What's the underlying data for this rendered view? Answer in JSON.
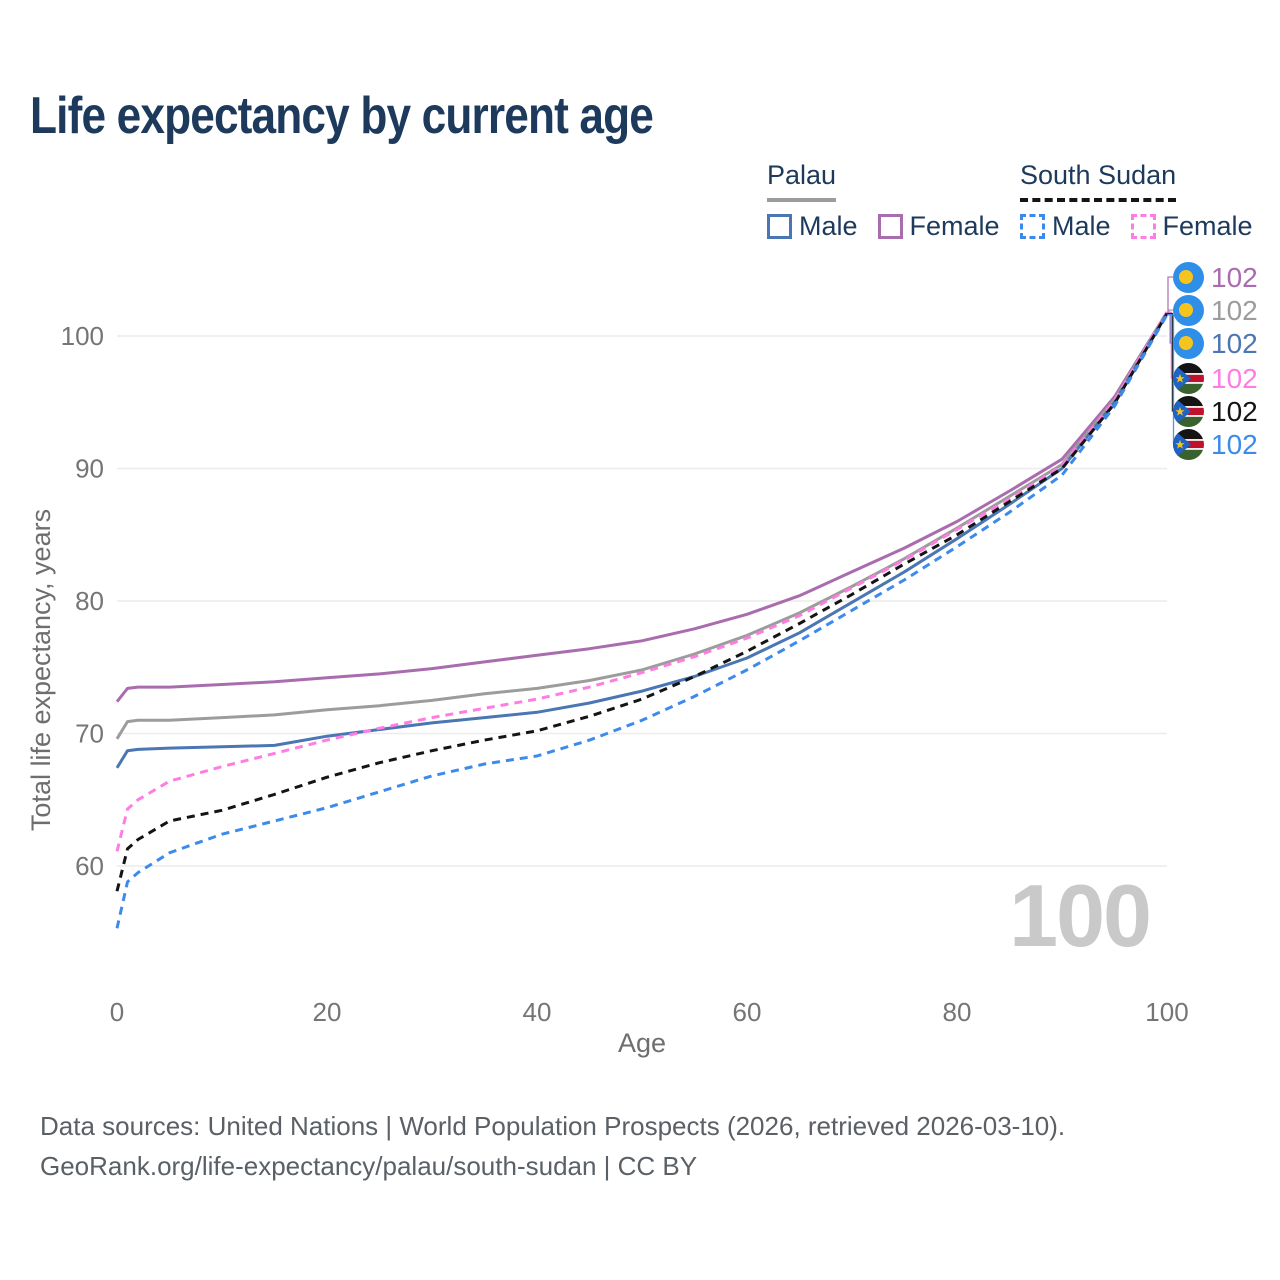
{
  "title": "Life expectancy by current age",
  "legend": {
    "groups": [
      {
        "title": "Palau",
        "line_style": "solid",
        "line_color": "#9c9c9c",
        "items": [
          {
            "label": "Male",
            "color": "#4a76b4",
            "dashed": false
          },
          {
            "label": "Female",
            "color": "#a96cae",
            "dashed": false
          }
        ]
      },
      {
        "title": "South Sudan",
        "line_style": "dashed",
        "line_color": "#141414",
        "items": [
          {
            "label": "Male",
            "color": "#3c8bec",
            "dashed": true
          },
          {
            "label": "Female",
            "color": "#ff7de2",
            "dashed": true
          }
        ]
      }
    ]
  },
  "right_labels": [
    {
      "flag": "palau",
      "value": "102",
      "color": "#a96cae"
    },
    {
      "flag": "palau",
      "value": "102",
      "color": "#9c9c9c"
    },
    {
      "flag": "palau",
      "value": "102",
      "color": "#4a76b4"
    },
    {
      "flag": "south-sudan",
      "value": "102",
      "color": "#ff7de2"
    },
    {
      "flag": "south-sudan",
      "value": "102",
      "color": "#141414"
    },
    {
      "flag": "south-sudan",
      "value": "102",
      "color": "#3c8bec"
    }
  ],
  "watermark": "100",
  "footer": {
    "line1": "Data sources: United Nations | World Population Prospects (2026, retrieved 2026-03-10).",
    "line2": "GeoRank.org/life-expectancy/palau/south-sudan | CC BY"
  },
  "chart_data": {
    "type": "line",
    "title": "Life expectancy by current age",
    "xlabel": "Age",
    "ylabel": "Total life expectancy, years",
    "x_ticks": [
      0,
      20,
      40,
      60,
      80,
      100
    ],
    "y_ticks": [
      60,
      70,
      80,
      90,
      100
    ],
    "xlim": [
      0,
      100
    ],
    "ylim": [
      54,
      103
    ],
    "grid": true,
    "legend_position": "top-right",
    "x": [
      0,
      1,
      2,
      5,
      10,
      15,
      20,
      25,
      30,
      35,
      40,
      45,
      50,
      55,
      60,
      65,
      70,
      75,
      80,
      85,
      90,
      95,
      100
    ],
    "series": [
      {
        "name": "Palau — Female",
        "country": "Palau",
        "sex": "Female",
        "color": "#a96cae",
        "dashed": false,
        "values": [
          72.4,
          73.4,
          73.5,
          73.5,
          73.7,
          73.9,
          74.2,
          74.5,
          74.9,
          75.4,
          75.9,
          76.4,
          77.0,
          77.9,
          79.0,
          80.4,
          82.2,
          84.0,
          86.0,
          88.3,
          90.7,
          95.4,
          101.8
        ]
      },
      {
        "name": "Palau — Both sexes",
        "country": "Palau",
        "sex": "Both",
        "color": "#9c9c9c",
        "dashed": false,
        "values": [
          69.6,
          70.9,
          71.0,
          71.0,
          71.2,
          71.4,
          71.8,
          72.1,
          72.5,
          73.0,
          73.4,
          74.0,
          74.8,
          76.0,
          77.4,
          79.1,
          81.1,
          83.2,
          85.5,
          87.9,
          90.3,
          95.2,
          101.8
        ]
      },
      {
        "name": "Palau — Male",
        "country": "Palau",
        "sex": "Male",
        "color": "#4a76b4",
        "dashed": false,
        "values": [
          67.4,
          68.7,
          68.8,
          68.9,
          69.0,
          69.1,
          69.8,
          70.3,
          70.8,
          71.2,
          71.6,
          72.3,
          73.2,
          74.3,
          75.7,
          77.6,
          79.9,
          82.2,
          84.7,
          87.3,
          90.0,
          95.0,
          101.7
        ]
      },
      {
        "name": "South Sudan — Female",
        "country": "South Sudan",
        "sex": "Female",
        "color": "#ff7de2",
        "dashed": true,
        "values": [
          61.1,
          64.3,
          65.0,
          66.4,
          67.5,
          68.5,
          69.5,
          70.4,
          71.2,
          71.9,
          72.6,
          73.5,
          74.6,
          75.8,
          77.2,
          78.9,
          81.0,
          83.1,
          85.4,
          87.7,
          90.2,
          95.1,
          101.8
        ]
      },
      {
        "name": "South Sudan — Both sexes",
        "country": "South Sudan",
        "sex": "Both",
        "color": "#141414",
        "dashed": true,
        "values": [
          58.1,
          61.3,
          62.0,
          63.4,
          64.2,
          65.4,
          66.7,
          67.8,
          68.7,
          69.5,
          70.2,
          71.3,
          72.6,
          74.3,
          76.2,
          78.3,
          80.5,
          82.8,
          85.0,
          87.5,
          90.0,
          94.9,
          101.7
        ]
      },
      {
        "name": "South Sudan — Male",
        "country": "South Sudan",
        "sex": "Male",
        "color": "#3c8bec",
        "dashed": true,
        "values": [
          55.3,
          58.8,
          59.5,
          61.0,
          62.4,
          63.4,
          64.4,
          65.6,
          66.8,
          67.7,
          68.3,
          69.5,
          71.0,
          72.8,
          74.8,
          77.0,
          79.3,
          81.6,
          84.1,
          86.7,
          89.5,
          94.7,
          101.6
        ]
      }
    ]
  }
}
